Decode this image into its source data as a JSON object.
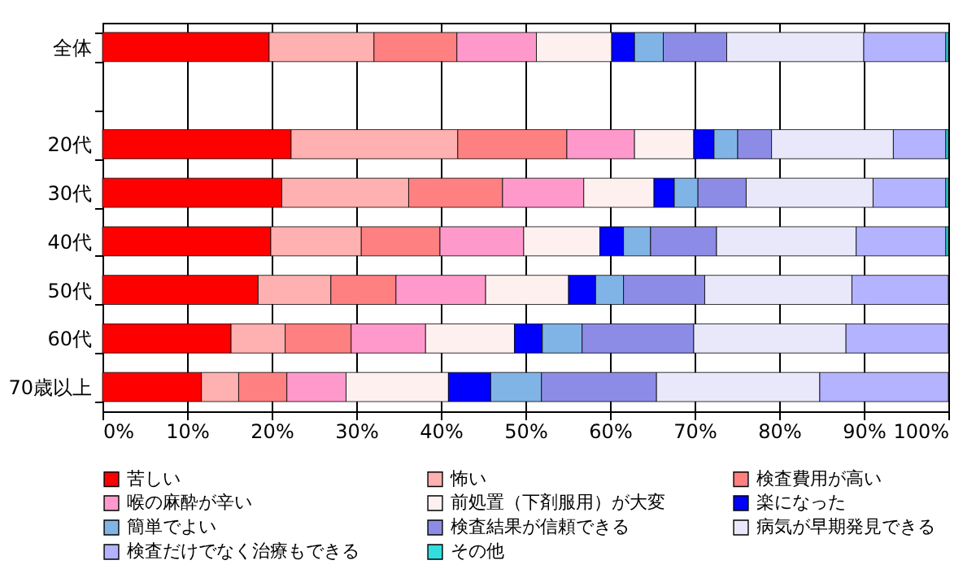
{
  "chart_data": {
    "type": "bar",
    "orientation": "horizontal",
    "stacked": true,
    "categories": [
      "全体",
      null,
      "20代",
      "30代",
      "40代",
      "50代",
      "60代",
      "70歳以上"
    ],
    "series": [
      {
        "name": "苦しい",
        "color": "#ff0000",
        "values": [
          19.7,
          null,
          22.3,
          21.2,
          19.9,
          18.4,
          15.2,
          11.7
        ]
      },
      {
        "name": "怖い",
        "color": "#ffb0b0",
        "values": [
          12.4,
          null,
          19.7,
          15.0,
          10.7,
          8.6,
          6.4,
          4.4
        ]
      },
      {
        "name": "検査費用が高い",
        "color": "#ff8080",
        "values": [
          9.8,
          null,
          12.9,
          11.1,
          9.3,
          7.7,
          7.8,
          5.7
        ]
      },
      {
        "name": "喉の麻酔が辛い",
        "color": "#ff99cc",
        "values": [
          9.4,
          null,
          8.0,
          9.6,
          9.9,
          10.6,
          8.8,
          7.0
        ]
      },
      {
        "name": "前処置（下剤服用）が大変",
        "color": "#fff0f0",
        "values": [
          8.9,
          null,
          7.0,
          8.3,
          9.0,
          9.8,
          10.5,
          12.1
        ]
      },
      {
        "name": "楽になった",
        "color": "#0000ff",
        "values": [
          2.7,
          null,
          2.4,
          2.4,
          2.8,
          3.2,
          3.3,
          5.0
        ]
      },
      {
        "name": "簡単でよい",
        "color": "#80b4e6",
        "values": [
          3.4,
          null,
          2.8,
          2.8,
          3.2,
          3.3,
          4.7,
          6.0
        ]
      },
      {
        "name": "検査結果が信頼できる",
        "color": "#8c8ce6",
        "values": [
          7.5,
          null,
          4.0,
          5.7,
          7.8,
          9.6,
          13.2,
          13.6
        ]
      },
      {
        "name": "病気が早期発見できる",
        "color": "#e8e8fa",
        "values": [
          16.2,
          null,
          14.4,
          15.0,
          16.5,
          17.4,
          18.0,
          19.3
        ]
      },
      {
        "name": "検査だけでなく治療もできる",
        "color": "#b3b3ff",
        "values": [
          9.7,
          null,
          6.2,
          8.6,
          10.6,
          11.4,
          12.1,
          15.2
        ]
      },
      {
        "name": "その他",
        "color": "#33dddd",
        "values": [
          0.3,
          null,
          0.3,
          0.3,
          0.3,
          0,
          0,
          0
        ]
      }
    ],
    "xlim": [
      0,
      100
    ],
    "xticks": [
      {
        "value": 0,
        "label": "0%"
      },
      {
        "value": 10,
        "label": "10%"
      },
      {
        "value": 20,
        "label": "20%"
      },
      {
        "value": 30,
        "label": "30%"
      },
      {
        "value": 40,
        "label": "40%"
      },
      {
        "value": 50,
        "label": "50%"
      },
      {
        "value": 60,
        "label": "60%"
      },
      {
        "value": 70,
        "label": "70%"
      },
      {
        "value": 80,
        "label": "80%"
      },
      {
        "value": 90,
        "label": "90%"
      },
      {
        "value": 100,
        "label": "100%"
      }
    ],
    "grid": "x",
    "legend": "bottom"
  }
}
